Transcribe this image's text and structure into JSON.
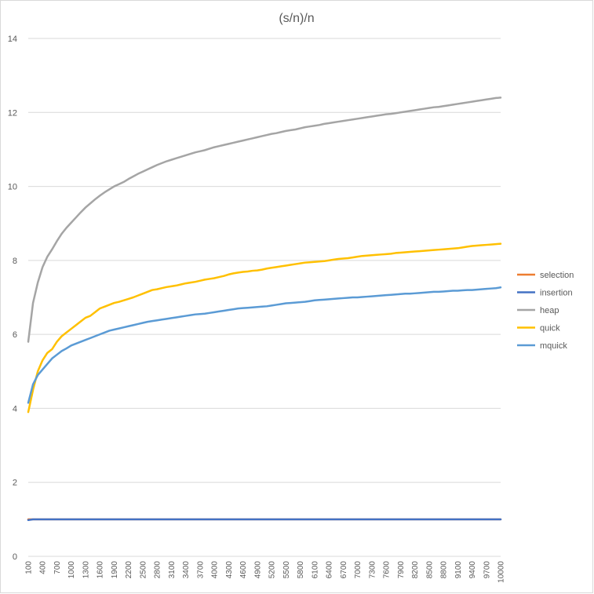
{
  "chart_data": {
    "type": "line",
    "title": "(s/n)/n",
    "xlabel": "",
    "ylabel": "",
    "ylim": [
      0,
      14
    ],
    "yticks": [
      0,
      2,
      4,
      6,
      8,
      10,
      12,
      14
    ],
    "grid": true,
    "legend_position": "right",
    "x_start": 100,
    "x_step": 100,
    "x_count": 100,
    "xtick_labels": [
      "100",
      "400",
      "700",
      "1000",
      "1300",
      "1600",
      "1900",
      "2200",
      "2500",
      "2800",
      "3100",
      "3400",
      "3700",
      "4000",
      "4300",
      "4600",
      "4900",
      "5200",
      "5500",
      "5800",
      "6100",
      "6400",
      "6700",
      "7000",
      "7300",
      "7600",
      "7900",
      "8200",
      "8500",
      "8800",
      "9100",
      "9400",
      "9700",
      "10000"
    ],
    "series": [
      {
        "name": "selection",
        "color": "#ed7d31",
        "values": [
          1,
          1,
          1,
          1,
          1,
          1,
          1,
          1,
          1,
          1,
          1,
          1,
          1,
          1,
          1,
          1,
          1,
          1,
          1,
          1,
          1,
          1,
          1,
          1,
          1,
          1,
          1,
          1,
          1,
          1,
          1,
          1,
          1,
          1,
          1,
          1,
          1,
          1,
          1,
          1,
          1,
          1,
          1,
          1,
          1,
          1,
          1,
          1,
          1,
          1,
          1,
          1,
          1,
          1,
          1,
          1,
          1,
          1,
          1,
          1,
          1,
          1,
          1,
          1,
          1,
          1,
          1,
          1,
          1,
          1,
          1,
          1,
          1,
          1,
          1,
          1,
          1,
          1,
          1,
          1,
          1,
          1,
          1,
          1,
          1,
          1,
          1,
          1,
          1,
          1,
          1,
          1,
          1,
          1,
          1,
          1,
          1,
          1,
          1,
          1
        ]
      },
      {
        "name": "insertion",
        "color": "#4472c4",
        "values": [
          0.98,
          1,
          1,
          1,
          1,
          1,
          1,
          1,
          1,
          1,
          1,
          1,
          1,
          1,
          1,
          1,
          1,
          1,
          1,
          1,
          1,
          1,
          1,
          1,
          1,
          1,
          1,
          1,
          1,
          1,
          1,
          1,
          1,
          1,
          1,
          1,
          1,
          1,
          1,
          1,
          1,
          1,
          1,
          1,
          1,
          1,
          1,
          1,
          1,
          1,
          1,
          1,
          1,
          1,
          1,
          1,
          1,
          1,
          1,
          1,
          1,
          1,
          1,
          1,
          1,
          1,
          1,
          1,
          1,
          1,
          1,
          1,
          1,
          1,
          1,
          1,
          1,
          1,
          1,
          1,
          1,
          1,
          1,
          1,
          1,
          1,
          1,
          1,
          1,
          1,
          1,
          1,
          1,
          1,
          1,
          1,
          1,
          1,
          1,
          1
        ]
      },
      {
        "name": "heap",
        "color": "#a5a5a5",
        "values": [
          5.8,
          6.85,
          7.4,
          7.82,
          8.1,
          8.3,
          8.52,
          8.72,
          8.88,
          9.02,
          9.16,
          9.3,
          9.43,
          9.54,
          9.65,
          9.75,
          9.84,
          9.92,
          10.0,
          10.06,
          10.12,
          10.2,
          10.27,
          10.34,
          10.4,
          10.46,
          10.52,
          10.58,
          10.63,
          10.68,
          10.72,
          10.76,
          10.8,
          10.84,
          10.88,
          10.92,
          10.95,
          10.98,
          11.02,
          11.06,
          11.09,
          11.12,
          11.15,
          11.18,
          11.21,
          11.24,
          11.27,
          11.3,
          11.33,
          11.36,
          11.39,
          11.42,
          11.44,
          11.47,
          11.5,
          11.52,
          11.54,
          11.57,
          11.6,
          11.62,
          11.64,
          11.66,
          11.69,
          11.71,
          11.73,
          11.75,
          11.77,
          11.79,
          11.81,
          11.83,
          11.85,
          11.87,
          11.89,
          11.91,
          11.93,
          11.95,
          11.96,
          11.98,
          12.0,
          12.02,
          12.04,
          12.06,
          12.08,
          12.1,
          12.12,
          12.14,
          12.15,
          12.17,
          12.19,
          12.21,
          12.23,
          12.25,
          12.27,
          12.29,
          12.31,
          12.33,
          12.35,
          12.37,
          12.39,
          12.4
        ]
      },
      {
        "name": "quick",
        "color": "#ffc000",
        "values": [
          3.9,
          4.5,
          5.0,
          5.3,
          5.5,
          5.6,
          5.8,
          5.95,
          6.05,
          6.15,
          6.25,
          6.35,
          6.45,
          6.5,
          6.6,
          6.7,
          6.75,
          6.8,
          6.85,
          6.88,
          6.92,
          6.96,
          7.0,
          7.05,
          7.1,
          7.15,
          7.2,
          7.22,
          7.25,
          7.28,
          7.3,
          7.32,
          7.35,
          7.38,
          7.4,
          7.42,
          7.45,
          7.48,
          7.5,
          7.52,
          7.55,
          7.58,
          7.62,
          7.65,
          7.67,
          7.69,
          7.7,
          7.72,
          7.73,
          7.75,
          7.78,
          7.8,
          7.82,
          7.84,
          7.86,
          7.88,
          7.9,
          7.92,
          7.94,
          7.95,
          7.96,
          7.97,
          7.98,
          8.0,
          8.02,
          8.04,
          8.05,
          8.06,
          8.08,
          8.1,
          8.12,
          8.13,
          8.14,
          8.15,
          8.16,
          8.17,
          8.18,
          8.2,
          8.21,
          8.22,
          8.23,
          8.24,
          8.25,
          8.26,
          8.27,
          8.28,
          8.29,
          8.3,
          8.31,
          8.32,
          8.33,
          8.35,
          8.37,
          8.39,
          8.4,
          8.41,
          8.42,
          8.43,
          8.44,
          8.45
        ]
      },
      {
        "name": "mquick",
        "color": "#5b9bd5",
        "values": [
          4.15,
          4.65,
          4.9,
          5.05,
          5.2,
          5.35,
          5.45,
          5.55,
          5.62,
          5.7,
          5.75,
          5.8,
          5.85,
          5.9,
          5.95,
          6.0,
          6.05,
          6.1,
          6.13,
          6.16,
          6.19,
          6.22,
          6.25,
          6.28,
          6.31,
          6.34,
          6.36,
          6.38,
          6.4,
          6.42,
          6.44,
          6.46,
          6.48,
          6.5,
          6.52,
          6.54,
          6.55,
          6.56,
          6.58,
          6.6,
          6.62,
          6.64,
          6.66,
          6.68,
          6.7,
          6.71,
          6.72,
          6.73,
          6.74,
          6.75,
          6.76,
          6.78,
          6.8,
          6.82,
          6.84,
          6.85,
          6.86,
          6.87,
          6.88,
          6.9,
          6.92,
          6.93,
          6.94,
          6.95,
          6.96,
          6.97,
          6.98,
          6.99,
          7.0,
          7.0,
          7.01,
          7.02,
          7.03,
          7.04,
          7.05,
          7.06,
          7.07,
          7.08,
          7.09,
          7.1,
          7.1,
          7.11,
          7.12,
          7.13,
          7.14,
          7.15,
          7.15,
          7.16,
          7.17,
          7.18,
          7.18,
          7.19,
          7.2,
          7.2,
          7.21,
          7.22,
          7.23,
          7.24,
          7.25,
          7.27
        ]
      }
    ]
  }
}
